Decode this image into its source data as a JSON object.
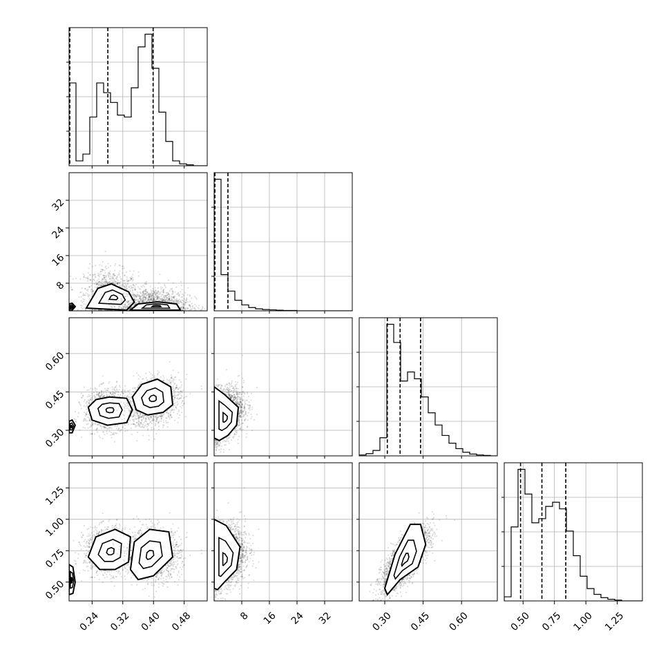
{
  "chart_data": {
    "type": "corner",
    "n_params": 4,
    "params": [
      {
        "range": [
          0.18,
          0.54
        ],
        "ticks": [
          0.24,
          0.32,
          0.4,
          0.48
        ],
        "tick_labels": [
          "0.24",
          "0.32",
          "0.40",
          "0.48"
        ],
        "quantiles": [
          0.181,
          0.281,
          0.399
        ],
        "hist": [
          0.85,
          0.05,
          0.12,
          0.5,
          0.85,
          0.75,
          0.65,
          0.52,
          0.5,
          0.8,
          1.22,
          1.35,
          1.0,
          0.55,
          0.25,
          0.05,
          0.02,
          0.01,
          0.0,
          0.0
        ]
      },
      {
        "range": [
          0,
          40
        ],
        "ticks": [
          8,
          16,
          24,
          32
        ],
        "tick_labels": [
          "8",
          "16",
          "24",
          "32"
        ],
        "quantiles": [
          0.0,
          0.0,
          4.0
        ],
        "hist": [
          4.0,
          1.1,
          0.6,
          0.32,
          0.18,
          0.1,
          0.06,
          0.04,
          0.03,
          0.02,
          0.01,
          0.01,
          0.0,
          0.0,
          0.0,
          0.0,
          0.0,
          0.0,
          0.0,
          0.0
        ]
      },
      {
        "range": [
          0.2,
          0.74
        ],
        "ticks": [
          0.3,
          0.45,
          0.6
        ],
        "tick_labels": [
          "0.30",
          "0.45",
          "0.60"
        ],
        "quantiles": [
          0.31,
          0.36,
          0.44
        ],
        "hist": [
          0.02,
          0.05,
          0.12,
          0.4,
          2.9,
          2.5,
          1.65,
          1.85,
          1.7,
          1.3,
          0.95,
          0.68,
          0.45,
          0.28,
          0.16,
          0.08,
          0.04,
          0.02,
          0.01,
          0.0
        ]
      },
      {
        "range": [
          0.35,
          1.45
        ],
        "ticks": [
          0.5,
          0.75,
          1.0,
          1.25
        ],
        "tick_labels": [
          "0.50",
          "0.75",
          "1.00",
          "1.25"
        ],
        "quantiles": [
          0.48,
          0.65,
          0.84
        ],
        "hist": [
          0.05,
          0.9,
          1.6,
          1.3,
          0.95,
          1.0,
          1.15,
          1.2,
          1.12,
          0.85,
          0.55,
          0.3,
          0.15,
          0.08,
          0.04,
          0.02,
          0.01,
          0.0,
          0.0,
          0.0
        ]
      }
    ],
    "pairs": [
      {
        "x": 0,
        "y": 1,
        "clusters": [
          {
            "center": [
              0.29,
              4.0
            ],
            "sd": [
              0.035,
              4.0
            ],
            "rho": -0.1,
            "weight": 0.45,
            "contours": [
              [
                0.225,
                0.8
              ],
              [
                0.255,
                6.5
              ],
              [
                0.29,
                7.8
              ],
              [
                0.335,
                5.5
              ],
              [
                0.35,
                2.5
              ],
              [
                0.33,
                0.2
              ]
            ]
          },
          {
            "center": [
              0.4,
              1.6
            ],
            "sd": [
              0.045,
              2.5
            ],
            "rho": 0.0,
            "weight": 0.55,
            "contours": [
              [
                0.34,
                0.2
              ],
              [
                0.36,
                2.0
              ],
              [
                0.41,
                2.6
              ],
              [
                0.46,
                2.0
              ],
              [
                0.47,
                0.2
              ]
            ]
          },
          {
            "center": [
              0.18,
              0.6
            ],
            "sd": [
              0.004,
              0.5
            ],
            "rho": 0.0,
            "weight": 0.0,
            "contours": [
              [
                0.18,
                0.0
              ],
              [
                0.18,
                2.0
              ],
              [
                0.188,
                2.2
              ],
              [
                0.196,
                1.2
              ],
              [
                0.188,
                0.2
              ]
            ]
          }
        ]
      },
      {
        "x": 0,
        "y": 2,
        "clusters": [
          {
            "center": [
              0.28,
              0.38
            ],
            "sd": [
              0.03,
              0.04
            ],
            "rho": 0.0,
            "weight": 0.45,
            "contours": [
              [
                0.23,
                0.39
              ],
              [
                0.25,
                0.42
              ],
              [
                0.285,
                0.43
              ],
              [
                0.33,
                0.425
              ],
              [
                0.345,
                0.38
              ],
              [
                0.33,
                0.33
              ],
              [
                0.28,
                0.32
              ],
              [
                0.24,
                0.34
              ]
            ]
          },
          {
            "center": [
              0.4,
              0.41
            ],
            "sd": [
              0.035,
              0.045
            ],
            "rho": 0.3,
            "weight": 0.55,
            "contours": [
              [
                0.345,
                0.43
              ],
              [
                0.37,
                0.48
              ],
              [
                0.41,
                0.5
              ],
              [
                0.445,
                0.47
              ],
              [
                0.45,
                0.4
              ],
              [
                0.425,
                0.37
              ],
              [
                0.385,
                0.36
              ],
              [
                0.355,
                0.38
              ]
            ]
          },
          {
            "center": [
              0.18,
              0.31
            ],
            "sd": [
              0.003,
              0.01
            ],
            "rho": 0.0,
            "weight": 0.0,
            "contours": [
              [
                0.18,
                0.29
              ],
              [
                0.18,
                0.335
              ],
              [
                0.188,
                0.34
              ],
              [
                0.196,
                0.32
              ],
              [
                0.188,
                0.29
              ]
            ]
          }
        ]
      },
      {
        "x": 1,
        "y": 2,
        "clusters": [
          {
            "center": [
              2.5,
              0.36
            ],
            "sd": [
              3.0,
              0.05
            ],
            "rho": 0.3,
            "weight": 1.0,
            "contours": [
              [
                0.0,
                0.27
              ],
              [
                0.0,
                0.47
              ],
              [
                3.0,
                0.44
              ],
              [
                7.0,
                0.39
              ],
              [
                6.5,
                0.32
              ],
              [
                4.0,
                0.28
              ],
              [
                1.5,
                0.26
              ]
            ]
          }
        ]
      },
      {
        "x": 0,
        "y": 3,
        "clusters": [
          {
            "center": [
              0.28,
              0.75
            ],
            "sd": [
              0.03,
              0.09
            ],
            "rho": 0.0,
            "weight": 0.45,
            "contours": [
              [
                0.23,
                0.7
              ],
              [
                0.25,
                0.86
              ],
              [
                0.3,
                0.92
              ],
              [
                0.34,
                0.86
              ],
              [
                0.335,
                0.66
              ],
              [
                0.3,
                0.6
              ],
              [
                0.26,
                0.6
              ]
            ]
          },
          {
            "center": [
              0.4,
              0.72
            ],
            "sd": [
              0.035,
              0.1
            ],
            "rho": 0.0,
            "weight": 0.55,
            "contours": [
              [
                0.34,
                0.6
              ],
              [
                0.35,
                0.82
              ],
              [
                0.39,
                0.92
              ],
              [
                0.44,
                0.9
              ],
              [
                0.45,
                0.7
              ],
              [
                0.4,
                0.55
              ],
              [
                0.36,
                0.52
              ]
            ]
          },
          {
            "center": [
              0.18,
              0.49
            ],
            "sd": [
              0.003,
              0.03
            ],
            "rho": 0.0,
            "weight": 0.0,
            "contours": [
              [
                0.18,
                0.4
              ],
              [
                0.18,
                0.64
              ],
              [
                0.19,
                0.62
              ],
              [
                0.196,
                0.5
              ],
              [
                0.19,
                0.41
              ]
            ]
          }
        ]
      },
      {
        "x": 1,
        "y": 3,
        "clusters": [
          {
            "center": [
              3.0,
              0.7
            ],
            "sd": [
              3.0,
              0.12
            ],
            "rho": 0.2,
            "weight": 1.0,
            "contours": [
              [
                0.0,
                0.45
              ],
              [
                0.0,
                1.0
              ],
              [
                3.5,
                0.95
              ],
              [
                7.5,
                0.78
              ],
              [
                6.5,
                0.6
              ],
              [
                3.0,
                0.5
              ],
              [
                1.0,
                0.44
              ]
            ]
          }
        ]
      },
      {
        "x": 2,
        "y": 3,
        "clusters": [
          {
            "center": [
              0.38,
              0.68
            ],
            "sd": [
              0.045,
              0.12
            ],
            "rho": 0.75,
            "weight": 1.0,
            "contours": [
              [
                0.3,
                0.45
              ],
              [
                0.34,
                0.72
              ],
              [
                0.4,
                0.96
              ],
              [
                0.44,
                0.96
              ],
              [
                0.46,
                0.8
              ],
              [
                0.43,
                0.62
              ],
              [
                0.36,
                0.52
              ],
              [
                0.31,
                0.4
              ]
            ]
          }
        ]
      }
    ]
  }
}
